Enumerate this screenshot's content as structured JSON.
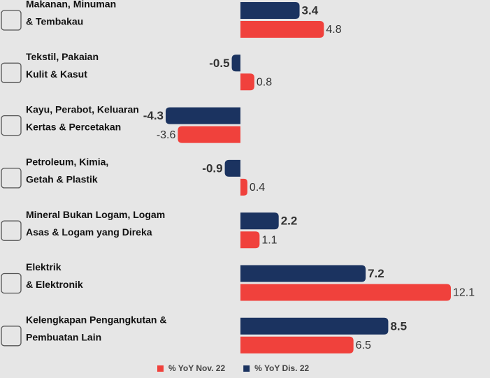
{
  "chart_data": {
    "type": "bar",
    "orientation": "horizontal",
    "categories": [
      [
        "Makanan, Minuman",
        "& Tembakau"
      ],
      [
        "Tekstil, Pakaian",
        "Kulit & Kasut"
      ],
      [
        "Kayu, Perabot, Keluaran",
        "Kertas & Percetakan"
      ],
      [
        "Petroleum, Kimia,",
        "Getah & Plastik"
      ],
      [
        "Mineral Bukan Logam, Logam",
        "Asas & Logam yang Direka"
      ],
      [
        "Elektrik",
        "& Elektronik"
      ],
      [
        "Kelengkapan Pengangkutan &",
        "Pembuatan Lain"
      ]
    ],
    "series": [
      {
        "name": "% YoY Nov. 22",
        "color": "#f0413c",
        "values": [
          4.8,
          0.8,
          -3.6,
          0.4,
          1.1,
          12.1,
          6.5
        ]
      },
      {
        "name": "% YoY Dis. 22",
        "color": "#1b3360",
        "values": [
          3.4,
          -0.5,
          -4.3,
          -0.9,
          2.2,
          7.2,
          8.5
        ]
      }
    ],
    "legend": "bottom"
  }
}
